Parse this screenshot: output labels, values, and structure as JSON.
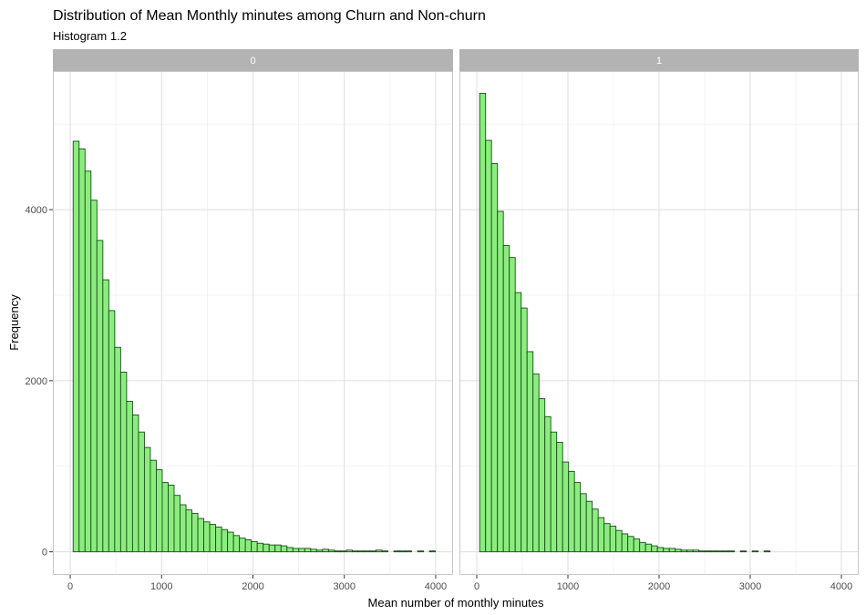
{
  "chart_data": {
    "type": "bar",
    "title": "Distribution of Mean Monthly minutes among Churn and Non-churn",
    "subtitle": "Histogram 1.2",
    "xlabel": "Mean number of monthly minutes",
    "ylabel": "Frequency",
    "xlim": [
      -190,
      4190
    ],
    "ylim": [
      -270,
      5620
    ],
    "x_ticks": [
      0,
      1000,
      2000,
      3000,
      4000
    ],
    "y_ticks": [
      0,
      2000,
      4000
    ],
    "grid": true,
    "bin_width": 65,
    "bin_start": 32,
    "colors": {
      "fill": "#8ced7f",
      "stroke": "#1a4d1a",
      "strip": "#b3b3b3",
      "grid": "#dedede",
      "panel_border": "#c8c8c8"
    },
    "panels": [
      {
        "label": "0",
        "values": [
          4800,
          4710,
          4450,
          4110,
          3640,
          3180,
          2820,
          2390,
          2100,
          1760,
          1600,
          1400,
          1220,
          1070,
          960,
          810,
          780,
          660,
          550,
          490,
          450,
          390,
          350,
          320,
          290,
          260,
          230,
          190,
          160,
          140,
          120,
          100,
          90,
          80,
          80,
          70,
          50,
          40,
          40,
          40,
          30,
          20,
          30,
          20,
          10,
          10,
          20,
          10,
          10,
          10,
          10,
          20,
          10,
          0,
          10,
          10,
          10,
          0,
          10,
          0,
          10
        ]
      },
      {
        "label": "1",
        "values": [
          5360,
          4810,
          4540,
          3980,
          3580,
          3440,
          3030,
          2850,
          2340,
          2080,
          1790,
          1580,
          1400,
          1280,
          1050,
          940,
          810,
          680,
          590,
          500,
          400,
          330,
          300,
          250,
          210,
          180,
          150,
          110,
          90,
          70,
          50,
          40,
          40,
          30,
          20,
          20,
          20,
          10,
          10,
          10,
          10,
          10,
          10,
          0,
          10,
          0,
          10,
          0,
          10,
          0,
          0,
          0,
          0,
          0,
          0,
          0,
          0,
          0,
          0,
          0,
          0
        ]
      }
    ]
  }
}
